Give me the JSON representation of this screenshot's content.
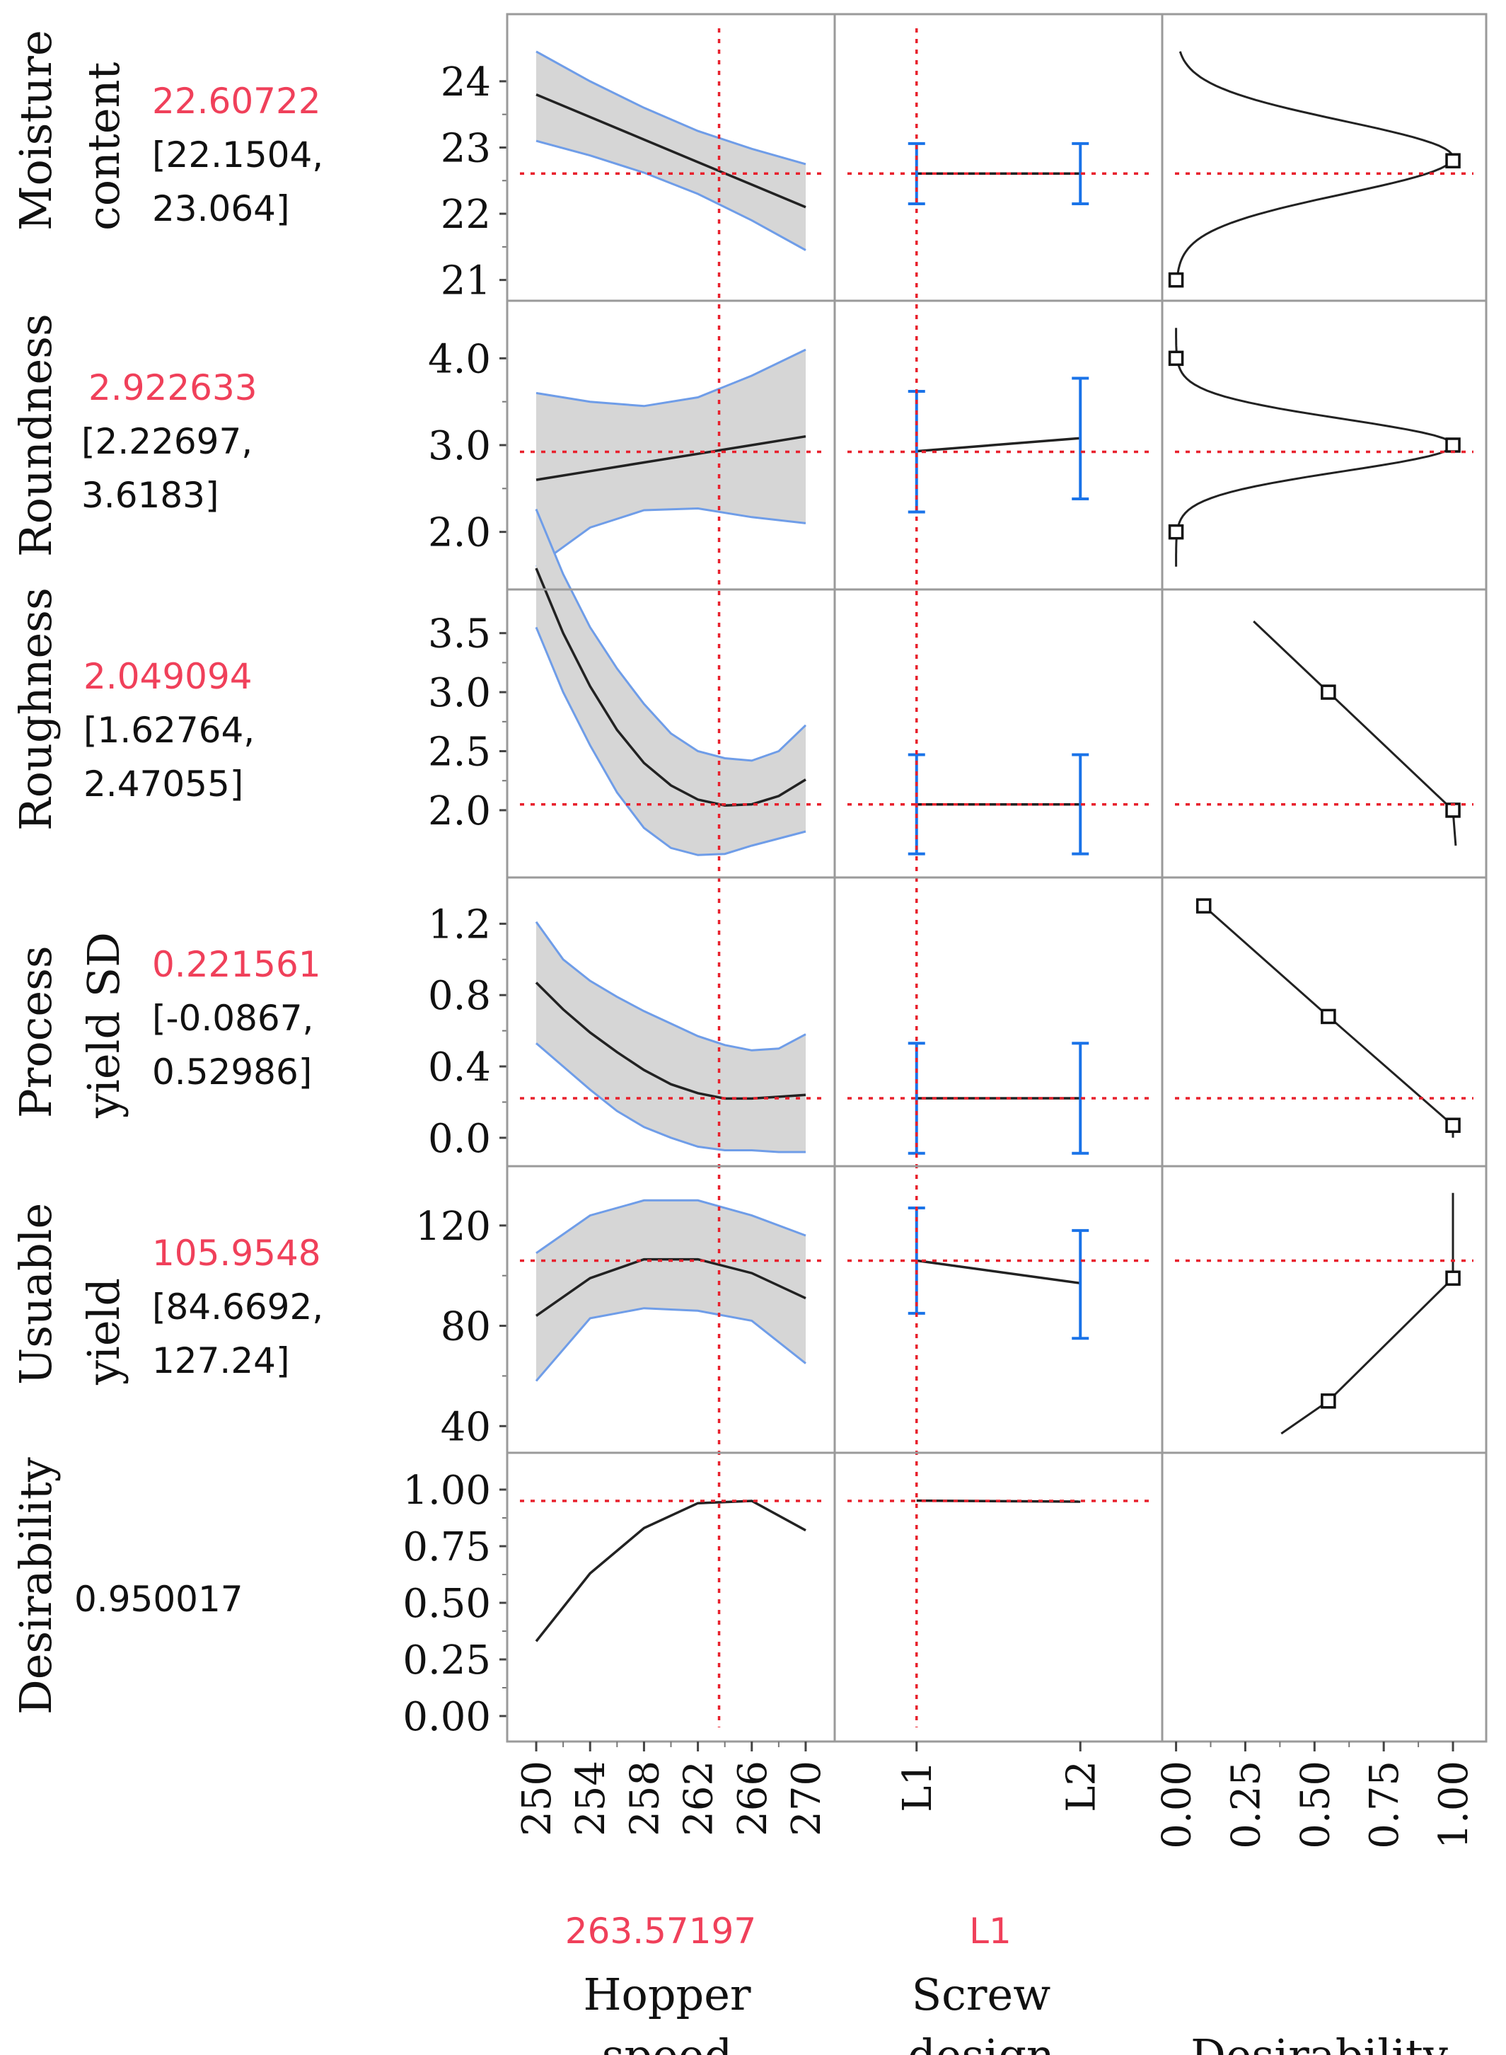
{
  "chart_data": {
    "type": "line",
    "title": "Prediction Profiler",
    "factors": [
      {
        "id": "hopper",
        "label_lines": [
          "Hopper",
          "speed"
        ],
        "current": "263.57197",
        "current_value": 263.57197,
        "range": [
          249,
          271
        ],
        "ticks": [
          250,
          254,
          258,
          262,
          266,
          270
        ],
        "tick_labels": [
          "250",
          "254",
          "258",
          "262",
          "266",
          "270"
        ],
        "categorical": false
      },
      {
        "id": "screw",
        "label_lines": [
          "Screw",
          "design"
        ],
        "current": "L1",
        "current_value": 1,
        "range": [
          0.5,
          2.5
        ],
        "ticks": [
          1,
          2
        ],
        "tick_labels": [
          "L1",
          "L2"
        ],
        "categorical": true
      },
      {
        "id": "desir",
        "label_lines": [
          "",
          "Desirability"
        ],
        "current": "",
        "range": [
          -0.05,
          1.12
        ],
        "ticks": [
          0,
          0.25,
          0.5,
          0.75,
          1
        ],
        "tick_labels": [
          "0.00",
          "0.25",
          "0.50",
          "0.75",
          "1.00"
        ],
        "categorical": false
      }
    ],
    "responses": [
      {
        "id": "moisture",
        "label_lines": [
          "Moisture",
          "content"
        ],
        "predicted": "22.60722",
        "ci_open": "[22.1504,",
        "ci_close": "23.064]",
        "predicted_value": 22.60722,
        "yrange": [
          20.9,
          24.8
        ],
        "yticks": [
          21,
          22,
          23,
          24
        ],
        "ytick_labels": [
          "21",
          "22",
          "23",
          "24"
        ],
        "hopper": {
          "x": [
            250,
            254,
            258,
            262,
            266,
            270
          ],
          "y": [
            23.8,
            23.46,
            23.12,
            22.78,
            22.44,
            22.1
          ],
          "lower": [
            23.1,
            22.88,
            22.62,
            22.3,
            21.9,
            21.45
          ],
          "upper": [
            24.45,
            24.0,
            23.6,
            23.25,
            22.98,
            22.75
          ]
        },
        "screw": {
          "y": [
            22.60722,
            22.60722
          ],
          "lower": [
            22.15,
            22.15
          ],
          "upper": [
            23.06,
            23.06
          ]
        },
        "desirability": {
          "shape": "bell",
          "center": 22.85,
          "sigma": 0.55,
          "yfrom": 21.0,
          "yto": 24.45,
          "markers": [
            [
              1.0,
              22.8
            ],
            [
              0.0,
              21.0
            ]
          ]
        }
      },
      {
        "id": "roundness",
        "label_lines": [
          "Roundness"
        ],
        "predicted": "2.922633",
        "ci_open": "[2.22697,",
        "ci_close": "3.6183]",
        "predicted_value": 2.922633,
        "yrange": [
          1.5,
          4.5
        ],
        "yticks": [
          2.0,
          3.0,
          4.0
        ],
        "ytick_labels": [
          "2.0",
          "3.0",
          "4.0"
        ],
        "hopper": {
          "x": [
            250,
            254,
            258,
            262,
            266,
            270
          ],
          "y": [
            2.6,
            2.7,
            2.8,
            2.9,
            3.0,
            3.1
          ],
          "lower": [
            1.6,
            2.05,
            2.25,
            2.27,
            2.17,
            2.1
          ],
          "upper": [
            3.6,
            3.5,
            3.45,
            3.55,
            3.8,
            4.1
          ]
        },
        "screw": {
          "y": [
            2.93,
            3.08
          ],
          "lower": [
            2.23,
            2.38
          ],
          "upper": [
            3.62,
            3.77
          ]
        },
        "desirability": {
          "shape": "bell",
          "center": 3.0,
          "sigma": 0.3,
          "yfrom": 1.6,
          "yto": 4.35,
          "markers": [
            [
              1.0,
              3.0
            ],
            [
              0.0,
              4.0
            ],
            [
              0.0,
              2.0
            ]
          ]
        }
      },
      {
        "id": "roughness",
        "label_lines": [
          "Roughness"
        ],
        "predicted": "2.049094",
        "ci_open": "[1.62764,",
        "ci_close": "2.47055]",
        "predicted_value": 2.049094,
        "yrange": [
          1.55,
          3.75
        ],
        "yticks": [
          2.0,
          2.5,
          3.0,
          3.5
        ],
        "ytick_labels": [
          "2.0",
          "2.5",
          "3.0",
          "3.5"
        ],
        "hopper": {
          "x": [
            250,
            252,
            254,
            256,
            258,
            260,
            262,
            264,
            266,
            268,
            270
          ],
          "y": [
            4.05,
            3.5,
            3.05,
            2.68,
            2.4,
            2.21,
            2.09,
            2.04,
            2.05,
            2.12,
            2.26
          ],
          "lower": [
            3.55,
            3.0,
            2.55,
            2.15,
            1.85,
            1.68,
            1.62,
            1.63,
            1.7,
            1.76,
            1.82
          ],
          "upper": [
            4.55,
            4.0,
            3.55,
            3.2,
            2.9,
            2.65,
            2.5,
            2.44,
            2.42,
            2.5,
            2.72
          ]
        },
        "screw": {
          "y": [
            2.049094,
            2.049094
          ],
          "lower": [
            1.63,
            1.63
          ],
          "upper": [
            2.47,
            2.47
          ]
        },
        "desirability": {
          "shape": "linear",
          "points": [
            [
              0.28,
              3.6
            ],
            [
              0.55,
              3.0
            ],
            [
              1.0,
              2.0
            ],
            [
              1.01,
              1.7
            ]
          ],
          "markers": [
            [
              0.55,
              3.0
            ],
            [
              1.0,
              2.0
            ]
          ]
        }
      },
      {
        "id": "processyield",
        "label_lines": [
          "Process",
          "yield SD"
        ],
        "predicted": "0.221561",
        "ci_open": "[-0.0867,",
        "ci_close": "0.52986]",
        "predicted_value": 0.221561,
        "yrange": [
          -0.08,
          1.38
        ],
        "yticks": [
          0.0,
          0.4,
          0.8,
          1.2
        ],
        "ytick_labels": [
          "0.0",
          "0.4",
          "0.8",
          "1.2"
        ],
        "hopper": {
          "x": [
            250,
            252,
            254,
            256,
            258,
            260,
            262,
            264,
            266,
            268,
            270
          ],
          "y": [
            0.87,
            0.72,
            0.59,
            0.48,
            0.38,
            0.3,
            0.25,
            0.22,
            0.22,
            0.23,
            0.24
          ],
          "lower": [
            0.53,
            0.4,
            0.27,
            0.15,
            0.06,
            0.0,
            -0.05,
            -0.07,
            -0.07,
            -0.08,
            -0.08
          ],
          "upper": [
            1.21,
            1.0,
            0.88,
            0.79,
            0.71,
            0.64,
            0.57,
            0.52,
            0.49,
            0.5,
            0.58
          ]
        },
        "screw": {
          "y": [
            0.221561,
            0.221561
          ],
          "lower": [
            -0.087,
            -0.087
          ],
          "upper": [
            0.53,
            0.53
          ]
        },
        "desirability": {
          "shape": "linear",
          "points": [
            [
              0.1,
              1.3
            ],
            [
              0.55,
              0.68
            ],
            [
              1.0,
              0.07
            ],
            [
              1.0,
              0.0
            ]
          ],
          "markers": [
            [
              0.1,
              1.3
            ],
            [
              0.55,
              0.68
            ],
            [
              1.0,
              0.07
            ]
          ]
        }
      },
      {
        "id": "usuable",
        "label_lines": [
          "Usuable",
          "yield"
        ],
        "predicted": "105.9548",
        "ci_open": "[84.6692,",
        "ci_close": "127.24]",
        "predicted_value": 105.9548,
        "yrange": [
          35,
          138
        ],
        "yticks": [
          40,
          80,
          120
        ],
        "ytick_labels": [
          "40",
          "80",
          "120"
        ],
        "hopper": {
          "x": [
            250,
            254,
            258,
            262,
            266,
            270
          ],
          "y": [
            84,
            99,
            106.5,
            106.5,
            101,
            91
          ],
          "lower": [
            58,
            83,
            87,
            86,
            82,
            65
          ],
          "upper": [
            109,
            124,
            130,
            130,
            124,
            116
          ]
        },
        "screw": {
          "y": [
            106,
            97
          ],
          "lower": [
            85,
            75
          ],
          "upper": [
            127,
            118
          ]
        },
        "desirability": {
          "shape": "linear",
          "points": [
            [
              0.38,
              37
            ],
            [
              0.55,
              50
            ],
            [
              1.0,
              99
            ],
            [
              1.0,
              133
            ]
          ],
          "markers": [
            [
              0.55,
              50
            ],
            [
              1.0,
              99
            ]
          ]
        }
      },
      {
        "id": "desirability",
        "label_lines": [
          "Desirability"
        ],
        "predicted": "0.950017",
        "ci_open": "",
        "ci_close": "",
        "predicted_value": 0.950017,
        "yrange": [
          -0.05,
          1.1
        ],
        "yticks": [
          0.0,
          0.25,
          0.5,
          0.75,
          1.0
        ],
        "ytick_labels": [
          "0.00",
          "0.25",
          "0.50",
          "0.75",
          "1.00"
        ],
        "hopper": {
          "x": [
            250,
            254,
            258,
            262,
            266,
            270
          ],
          "y": [
            0.33,
            0.63,
            0.83,
            0.94,
            0.95,
            0.82
          ]
        },
        "screw": {
          "y": [
            0.951,
            0.947
          ]
        }
      }
    ]
  },
  "colors": {
    "predicted": "#f0405a",
    "bracket": "#222222",
    "interval_fill": "#d6d6d6",
    "interval_edge": "#6f9de8",
    "curve": "#222222",
    "errorbar": "#1a73e8",
    "reference": "#e8202c",
    "frame": "#9a9a9a"
  }
}
